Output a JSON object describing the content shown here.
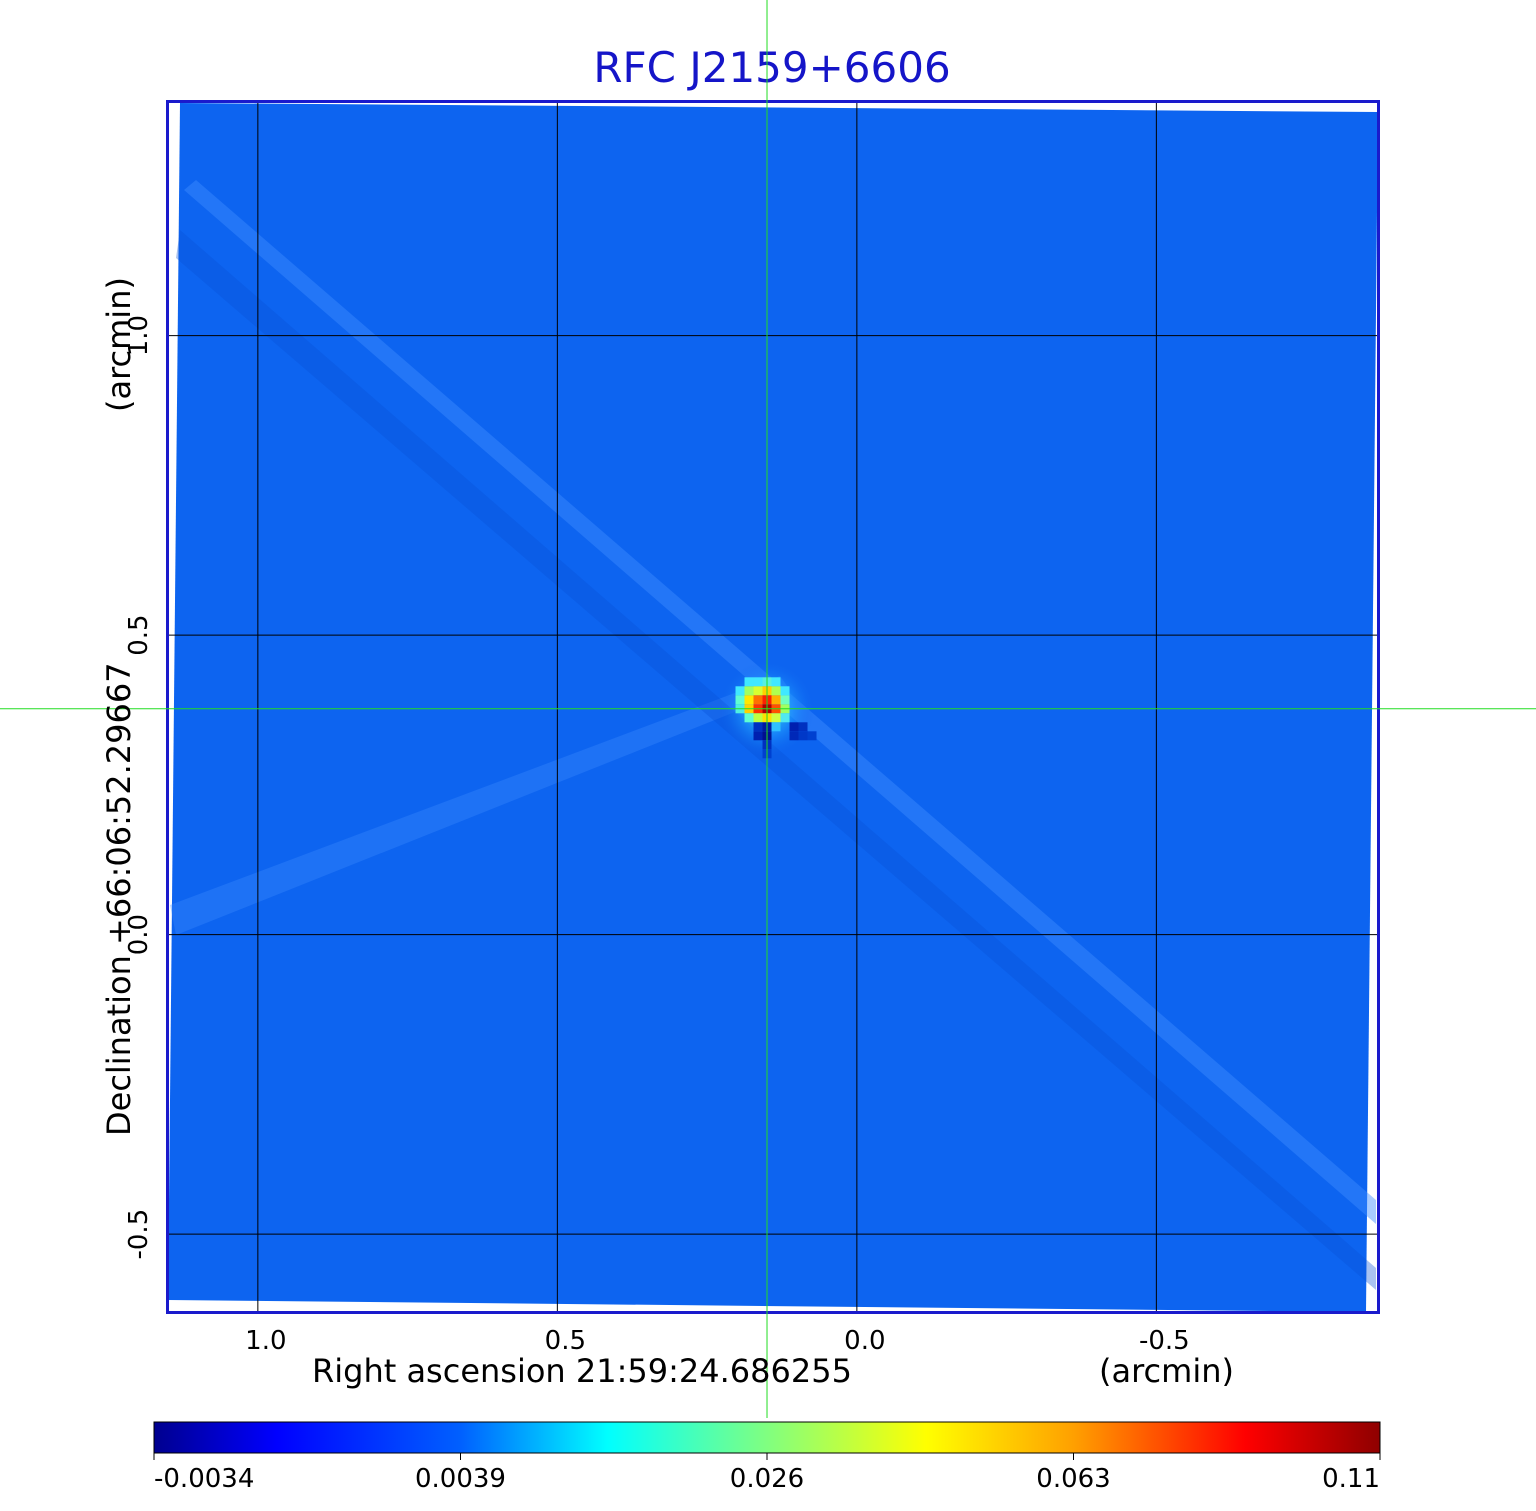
{
  "chart_data": {
    "type": "heatmap",
    "title": "RFC J2159+6606",
    "xlabel": "Right ascension  21:59:24.686255",
    "xunit": "(arcmin)",
    "ylabel": "Declination  +66:06:52.29667",
    "yunit": "(arcmin)",
    "x_ticks": [
      "1.0",
      "0.5",
      "0.0",
      "-0.5"
    ],
    "x_tick_values": [
      1.0,
      0.5,
      0.0,
      -0.5
    ],
    "y_ticks": [
      "1.0",
      "0.5",
      "0.0",
      "-0.5"
    ],
    "y_tick_values": [
      1.0,
      0.5,
      0.0,
      -0.5
    ],
    "xlim": [
      1.15,
      -0.87
    ],
    "ylim": [
      -0.63,
      1.39
    ],
    "grid": true,
    "crosshair": {
      "x": 0.15,
      "y": 0.377
    },
    "source": {
      "x": 0.15,
      "y": 0.377,
      "peak": 0.11
    },
    "colorbar": {
      "ticks": [
        "-0.0034",
        "0.0039",
        "0.026",
        "0.063",
        "0.11"
      ],
      "tick_values": [
        -0.0034,
        0.0039,
        0.026,
        0.063,
        0.11
      ],
      "range": [
        -0.0034,
        0.11
      ],
      "colormap": "jet",
      "placement": "bottom"
    },
    "colors": {
      "title": "#1515c8",
      "frame": "#1a1acc",
      "background": "#0d64f0",
      "crosshair": "#22dd22",
      "grid": "#000000"
    }
  }
}
